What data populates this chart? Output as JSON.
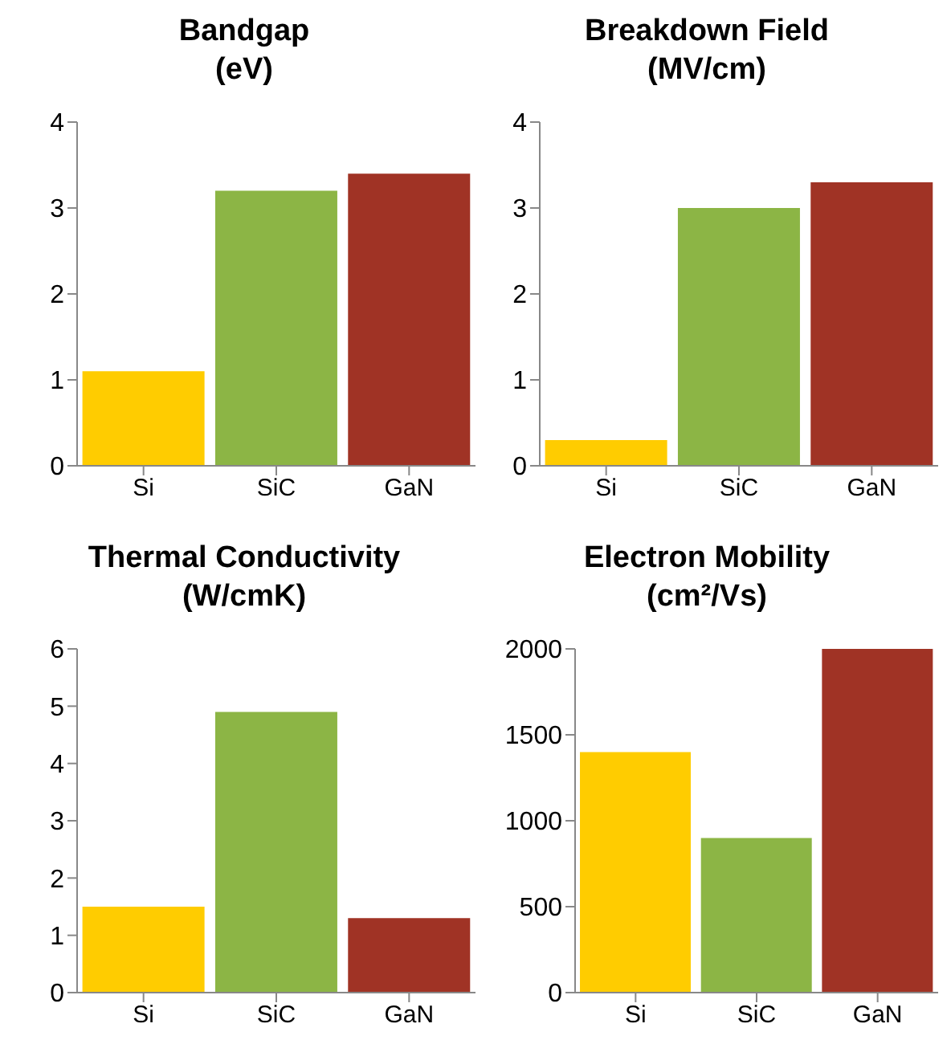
{
  "chart_data": [
    {
      "type": "bar",
      "title": "Bandgap",
      "subtitle": "(eV)",
      "categories": [
        "Si",
        "SiC",
        "GaN"
      ],
      "values": [
        1.1,
        3.2,
        3.4
      ],
      "colors": [
        "#ffcc00",
        "#8cb545",
        "#a03325"
      ],
      "ylim": [
        0,
        4
      ],
      "yticks": [
        0,
        1,
        2,
        3,
        4
      ],
      "grid": false
    },
    {
      "type": "bar",
      "title": "Breakdown Field",
      "subtitle": "(MV/cm)",
      "categories": [
        "Si",
        "SiC",
        "GaN"
      ],
      "values": [
        0.3,
        3.0,
        3.3
      ],
      "colors": [
        "#ffcc00",
        "#8cb545",
        "#a03325"
      ],
      "ylim": [
        0,
        4
      ],
      "yticks": [
        0,
        1,
        2,
        3,
        4
      ],
      "grid": false
    },
    {
      "type": "bar",
      "title": "Thermal Conductivity",
      "subtitle": "(W/cmK)",
      "categories": [
        "Si",
        "SiC",
        "GaN"
      ],
      "values": [
        1.5,
        4.9,
        1.3
      ],
      "colors": [
        "#ffcc00",
        "#8cb545",
        "#a03325"
      ],
      "ylim": [
        0,
        6
      ],
      "yticks": [
        0,
        1,
        2,
        3,
        4,
        5,
        6
      ],
      "grid": false
    },
    {
      "type": "bar",
      "title": "Electron Mobility",
      "subtitle": "(cm²/Vs)",
      "categories": [
        "Si",
        "SiC",
        "GaN"
      ],
      "values": [
        1400,
        900,
        2000
      ],
      "colors": [
        "#ffcc00",
        "#8cb545",
        "#a03325"
      ],
      "ylim": [
        0,
        2000
      ],
      "yticks": [
        0,
        500,
        1000,
        1500,
        2000
      ],
      "grid": false
    }
  ]
}
